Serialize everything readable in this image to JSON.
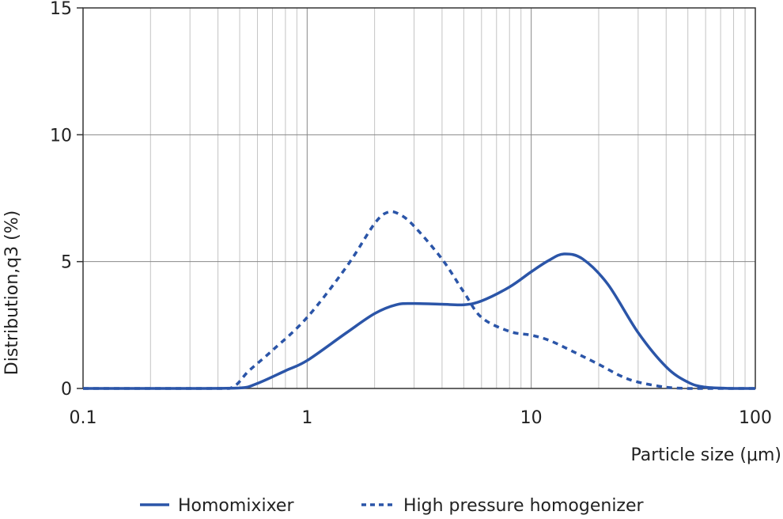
{
  "chart_data": {
    "type": "line",
    "xscale": "log",
    "xlim": [
      0.1,
      100
    ],
    "ylim": [
      0,
      15
    ],
    "grid": true,
    "legend_position": "bottom",
    "xlabel": "Particle size (μm)",
    "ylabel": "Distribution,q3 (%)",
    "x_ticks": [
      {
        "value": 0.1,
        "label": "0.1"
      },
      {
        "value": 1,
        "label": "1"
      },
      {
        "value": 10,
        "label": "10"
      },
      {
        "value": 100,
        "label": "100"
      }
    ],
    "y_ticks": [
      {
        "value": 0,
        "label": "0"
      },
      {
        "value": 5,
        "label": "5"
      },
      {
        "value": 10,
        "label": "10"
      },
      {
        "value": 15,
        "label": "15"
      }
    ],
    "series": [
      {
        "name": "Homomixixer",
        "color": "#2b55a8",
        "style": "solid",
        "x": [
          0.1,
          0.3,
          0.5,
          0.6,
          0.8,
          1.0,
          1.5,
          2.0,
          2.5,
          3.0,
          4.0,
          5.0,
          6.0,
          8.0,
          10.0,
          12.0,
          14.0,
          17.0,
          22.0,
          30.0,
          40.0,
          50.0,
          60.0,
          80.0,
          100.0
        ],
        "y": [
          0,
          0,
          0.02,
          0.2,
          0.7,
          1.1,
          2.2,
          2.95,
          3.3,
          3.35,
          3.32,
          3.3,
          3.45,
          4.0,
          4.6,
          5.05,
          5.3,
          5.1,
          4.1,
          2.2,
          0.85,
          0.25,
          0.05,
          0.0,
          0.0
        ]
      },
      {
        "name": "High pressure homogenizer",
        "color": "#2b55a8",
        "style": "dashed",
        "x": [
          0.1,
          0.3,
          0.45,
          0.55,
          0.7,
          1.0,
          1.5,
          2.0,
          2.3,
          2.6,
          3.0,
          4.0,
          5.0,
          6.0,
          8.0,
          10.0,
          12.0,
          15.0,
          20.0,
          25.0,
          30.0,
          40.0,
          50.0,
          60.0,
          80.0,
          100.0
        ],
        "y": [
          0,
          0,
          0.0,
          0.7,
          1.5,
          2.8,
          4.8,
          6.5,
          6.95,
          6.85,
          6.4,
          5.1,
          3.8,
          2.8,
          2.25,
          2.1,
          1.9,
          1.5,
          0.95,
          0.5,
          0.25,
          0.05,
          0.0,
          0.0,
          0.0,
          0.0
        ]
      }
    ]
  }
}
